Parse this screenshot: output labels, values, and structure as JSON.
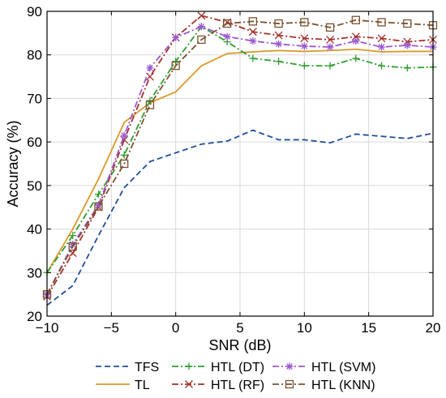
{
  "chart_data": {
    "type": "line",
    "xlabel": "SNR (dB)",
    "ylabel": "Accuracy (%)",
    "xlim": [
      -10,
      20
    ],
    "ylim": [
      20,
      90
    ],
    "xticks": [
      -10,
      -5,
      0,
      5,
      10,
      15,
      20
    ],
    "xtick_labels": [
      "−10",
      "−5",
      "0",
      "5",
      "10",
      "15",
      "20"
    ],
    "yticks": [
      20,
      30,
      40,
      50,
      60,
      70,
      80,
      90
    ],
    "ytick_labels": [
      "20",
      "30",
      "40",
      "50",
      "60",
      "70",
      "80",
      "90"
    ],
    "grid": true,
    "legend_position": "bottom",
    "x": [
      -10,
      -8,
      -6,
      -4,
      -2,
      0,
      2,
      4,
      6,
      8,
      10,
      12,
      14,
      16,
      18,
      20
    ],
    "series": [
      {
        "name": "TFS",
        "color": "#1f4e9c",
        "dash": "dashed",
        "marker": "none",
        "values": [
          22.5,
          27,
          38.5,
          49.5,
          55.5,
          57.5,
          59.5,
          60.2,
          62.7,
          60.5,
          60.5,
          59.8,
          61.8,
          61.3,
          60.8,
          62
        ]
      },
      {
        "name": "TL",
        "color": "#d99a2b",
        "dash": "solid",
        "marker": "none",
        "values": [
          30,
          40,
          51.5,
          64.5,
          69,
          71.5,
          77.5,
          80.3,
          80.7,
          81,
          80.8,
          81,
          81.3,
          80.7,
          80.8,
          80.8
        ]
      },
      {
        "name": "HTL (DT)",
        "color": "#2f9e2f",
        "dash": "dashdot",
        "marker": "plus",
        "values": [
          30,
          38.5,
          48,
          57,
          69.5,
          78.5,
          86.5,
          83,
          79.2,
          78.5,
          77.5,
          77.5,
          79.2,
          77.5,
          77,
          77.2
        ]
      },
      {
        "name": "HTL (RF)",
        "color": "#a3322a",
        "dash": "dashdot",
        "marker": "x",
        "values": [
          24.5,
          34.5,
          45,
          60.5,
          75,
          84,
          89,
          87.5,
          85.3,
          84.5,
          83.8,
          83.5,
          84.2,
          83.8,
          83,
          83.5
        ]
      },
      {
        "name": "HTL (SVM)",
        "color": "#9b59d0",
        "dash": "dashdot",
        "marker": "star",
        "values": [
          25,
          36.5,
          45.5,
          61.5,
          77,
          84,
          86.5,
          84.2,
          83.2,
          82.5,
          82,
          81.8,
          83.2,
          81.8,
          82.2,
          81.8
        ]
      },
      {
        "name": "HTL (KNN)",
        "color": "#7a5230",
        "dash": "dashdot",
        "marker": "square",
        "values": [
          25,
          36,
          45.2,
          55,
          68.5,
          77.5,
          83.5,
          87.2,
          87.7,
          87.2,
          87.5,
          86.3,
          88,
          87.5,
          87.2,
          86.8
        ]
      }
    ]
  }
}
